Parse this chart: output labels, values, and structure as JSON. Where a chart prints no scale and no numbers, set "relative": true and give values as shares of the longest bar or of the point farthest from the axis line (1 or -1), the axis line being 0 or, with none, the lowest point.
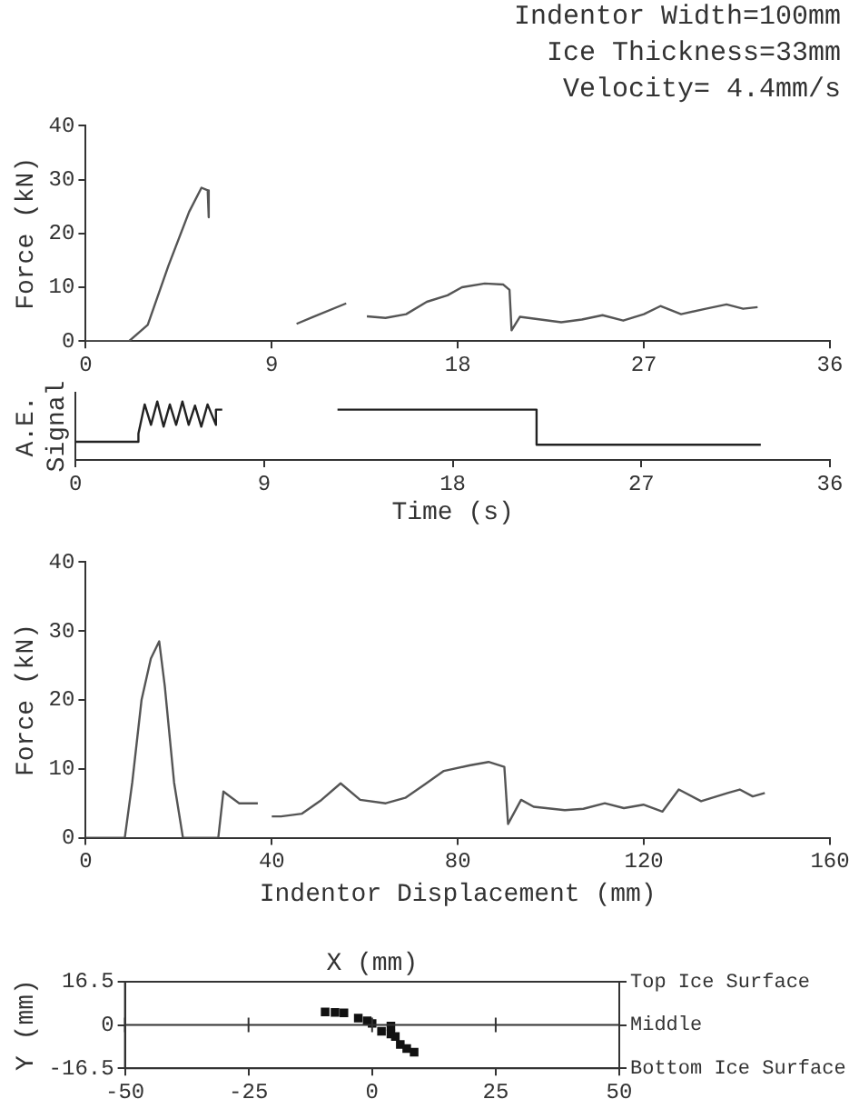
{
  "chart_data": [
    {
      "type": "line",
      "annotations": [
        "Indentor Width=100mm",
        "Ice Thickness=33mm",
        "Velocity= 4.4mm/s"
      ],
      "ylabel": "Force (kN)",
      "color": "#555555",
      "x": [
        0,
        2.1,
        3,
        4,
        5,
        5.6,
        5.9,
        5.95,
        8,
        10.2,
        11,
        12.6,
        13,
        13.6,
        14.5,
        15.5,
        16.5,
        17.5,
        18.2,
        19.3,
        20.2,
        20.5,
        20.6,
        21,
        22,
        23,
        24,
        25,
        26,
        27,
        27.8,
        28.8,
        30,
        31,
        31.8,
        32.5
      ],
      "values": [
        0,
        0,
        3,
        14,
        24,
        28.5,
        28,
        23,
        null,
        3.2,
        4.5,
        7,
        null,
        4.6,
        4.3,
        5,
        7.3,
        8.5,
        10,
        10.7,
        10.5,
        9.5,
        2,
        4.5,
        4,
        3.5,
        4,
        4.8,
        3.8,
        5,
        6.5,
        5,
        6,
        6.8,
        6,
        6.3
      ],
      "xlim": [
        0,
        36
      ],
      "xticks": [
        0,
        9,
        18,
        27,
        36
      ],
      "ylim": [
        0,
        40
      ],
      "yticks": [
        0,
        10,
        20,
        30,
        40
      ]
    },
    {
      "type": "line",
      "relative": true,
      "ylabel": "A.E.\nSignal",
      "xlabel": "Time (s)",
      "color": "#222222",
      "x": [
        0,
        3.0,
        3.0,
        3.3,
        3.6,
        3.9,
        4.2,
        4.5,
        4.8,
        5.1,
        5.4,
        5.7,
        6.0,
        6.3,
        6.7,
        6.7,
        7.0,
        9,
        12.5,
        22,
        22,
        32.7
      ],
      "values": [
        0.31,
        0.31,
        0.45,
        0.95,
        0.6,
        1,
        0.57,
        0.95,
        0.6,
        1,
        0.6,
        0.93,
        0.57,
        0.95,
        0.6,
        0.86,
        0.86,
        null,
        0.86,
        0.86,
        0.26,
        0.26
      ],
      "xlim": [
        0,
        36
      ],
      "xticks": [
        0,
        9,
        18,
        27,
        36
      ]
    },
    {
      "type": "line",
      "xlabel": "Indentor Displacement (mm)",
      "ylabel": "Force (kN)",
      "color": "#555555",
      "x": [
        0,
        8.4,
        10,
        12,
        14,
        15.8,
        17,
        19,
        20.9,
        28.5,
        29.6,
        33,
        37,
        38,
        40,
        42,
        46.5,
        50.7,
        54.8,
        59,
        64.5,
        68.7,
        72.8,
        77,
        82.5,
        86.6,
        90,
        90.8,
        93.6,
        96.3,
        103,
        107,
        111.6,
        115.7,
        119.9,
        124,
        127.5,
        132.3,
        138,
        140.6,
        143.4,
        146
      ],
      "values": [
        0,
        0,
        8,
        20,
        26,
        28.5,
        22,
        8,
        0,
        0,
        6.7,
        5,
        5,
        null,
        3.1,
        3.1,
        3.5,
        5.5,
        7.9,
        5.5,
        5,
        5.8,
        7.7,
        9.7,
        10.5,
        11,
        10.3,
        2,
        5.5,
        4.5,
        4,
        4.2,
        5,
        4.3,
        4.8,
        3.8,
        7,
        5.3,
        6.5,
        7,
        6,
        6.5
      ],
      "xlim": [
        0,
        160
      ],
      "xticks": [
        0,
        40,
        80,
        120,
        160
      ],
      "ylim": [
        0,
        40
      ],
      "yticks": [
        0,
        10,
        20,
        30,
        40
      ]
    },
    {
      "type": "scatter",
      "xlabel": "X (mm)",
      "ylabel": "Y (mm)",
      "color": "#111111",
      "marker": "square",
      "x": [
        -9.5,
        -7.5,
        -5.7,
        -2.8,
        -1,
        0,
        1.9,
        3.8,
        3.8,
        4.7,
        5.7,
        7,
        8.5
      ],
      "values": [
        5,
        4.8,
        4.6,
        2.6,
        1.6,
        0.6,
        -2.4,
        -0.4,
        -3.4,
        -4.4,
        -7.4,
        -9,
        -10.4
      ],
      "xlim": [
        -50,
        50
      ],
      "xticks": [
        -50,
        -25,
        0,
        25,
        50
      ],
      "ylim": [
        -16.5,
        16.5
      ],
      "yticks": [
        16.5,
        0,
        -16.5
      ],
      "y2_categories": [
        "Top Ice Surface",
        "Middle",
        "Bottom Ice Surface"
      ],
      "ref_lines": [
        {
          "axis": "y",
          "value": 0
        }
      ]
    }
  ]
}
